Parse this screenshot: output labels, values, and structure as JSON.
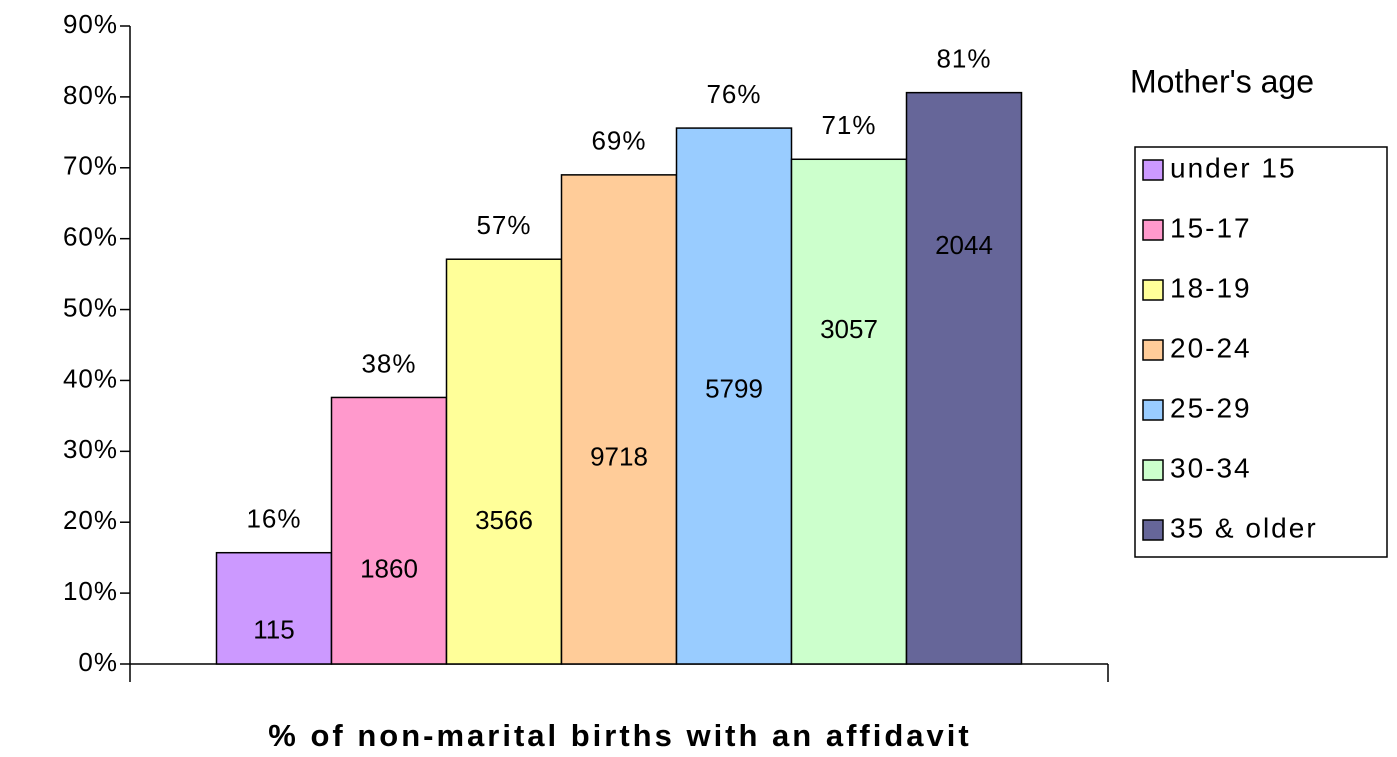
{
  "chart_data": {
    "type": "bar",
    "categories": [
      "under 15",
      "15-17",
      "18-19",
      "20-24",
      "25-29",
      "30-34",
      "35 & older"
    ],
    "values": [
      15.7,
      37.6,
      57.1,
      69,
      75.6,
      71.2,
      80.6
    ],
    "value_labels": [
      "16%",
      "38%",
      "57%",
      "69%",
      "76%",
      "71%",
      "81%"
    ],
    "counts": [
      115,
      1860,
      3566,
      9718,
      5799,
      3057,
      2044
    ],
    "colors": [
      "#cc99ff",
      "#ff99cc",
      "#ffff99",
      "#ffcc99",
      "#99ccff",
      "#ccffcc",
      "#666699"
    ],
    "ylim": [
      0,
      90
    ],
    "yticks": [
      {
        "value": 0,
        "label": "0%"
      },
      {
        "value": 10,
        "label": "10%"
      },
      {
        "value": 20,
        "label": "20%"
      },
      {
        "value": 30,
        "label": "30%"
      },
      {
        "value": 40,
        "label": "40%"
      },
      {
        "value": 50,
        "label": "50%"
      },
      {
        "value": 60,
        "label": "60%"
      },
      {
        "value": 70,
        "label": "70%"
      },
      {
        "value": 80,
        "label": "80%"
      },
      {
        "value": 90,
        "label": "90%"
      }
    ],
    "legend_title": "Mother's age",
    "x_label": "% of non-marital births with an affidavit"
  }
}
